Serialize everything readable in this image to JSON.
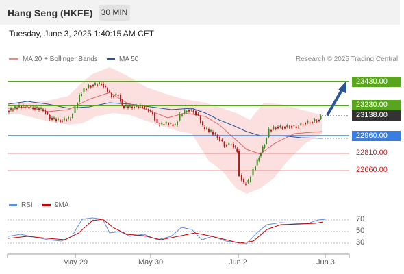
{
  "header": {
    "title": "Hang Seng (HKFE)",
    "interval": "30 MIN"
  },
  "datetime": "Tuesday, June 3, 2025 1:40:15 AM CET",
  "legend": {
    "ma20": {
      "label": "MA 20 + Bollinger Bands",
      "color": "#f28b82"
    },
    "ma50": {
      "label": "MA 50",
      "color": "#2a5599"
    }
  },
  "credit": "Research © 2025 Trading Central",
  "levels": {
    "r2": "23430.00",
    "r1": "23230.00",
    "last": "23138.00",
    "pivot": "22960.00",
    "s1": "22810.00",
    "s2": "22660.00"
  },
  "colors": {
    "resistance": "#5aa51e",
    "pivot": "#3a7de0",
    "support": "#e06666",
    "last": "#333333"
  },
  "rsi_legend": {
    "rsi": "RSI",
    "ma": "9MA"
  },
  "rsi_ticks": [
    "70",
    "50",
    "30"
  ],
  "x_labels": [
    "May 29",
    "May 30",
    "Jun 2",
    "Jun 3"
  ]
}
